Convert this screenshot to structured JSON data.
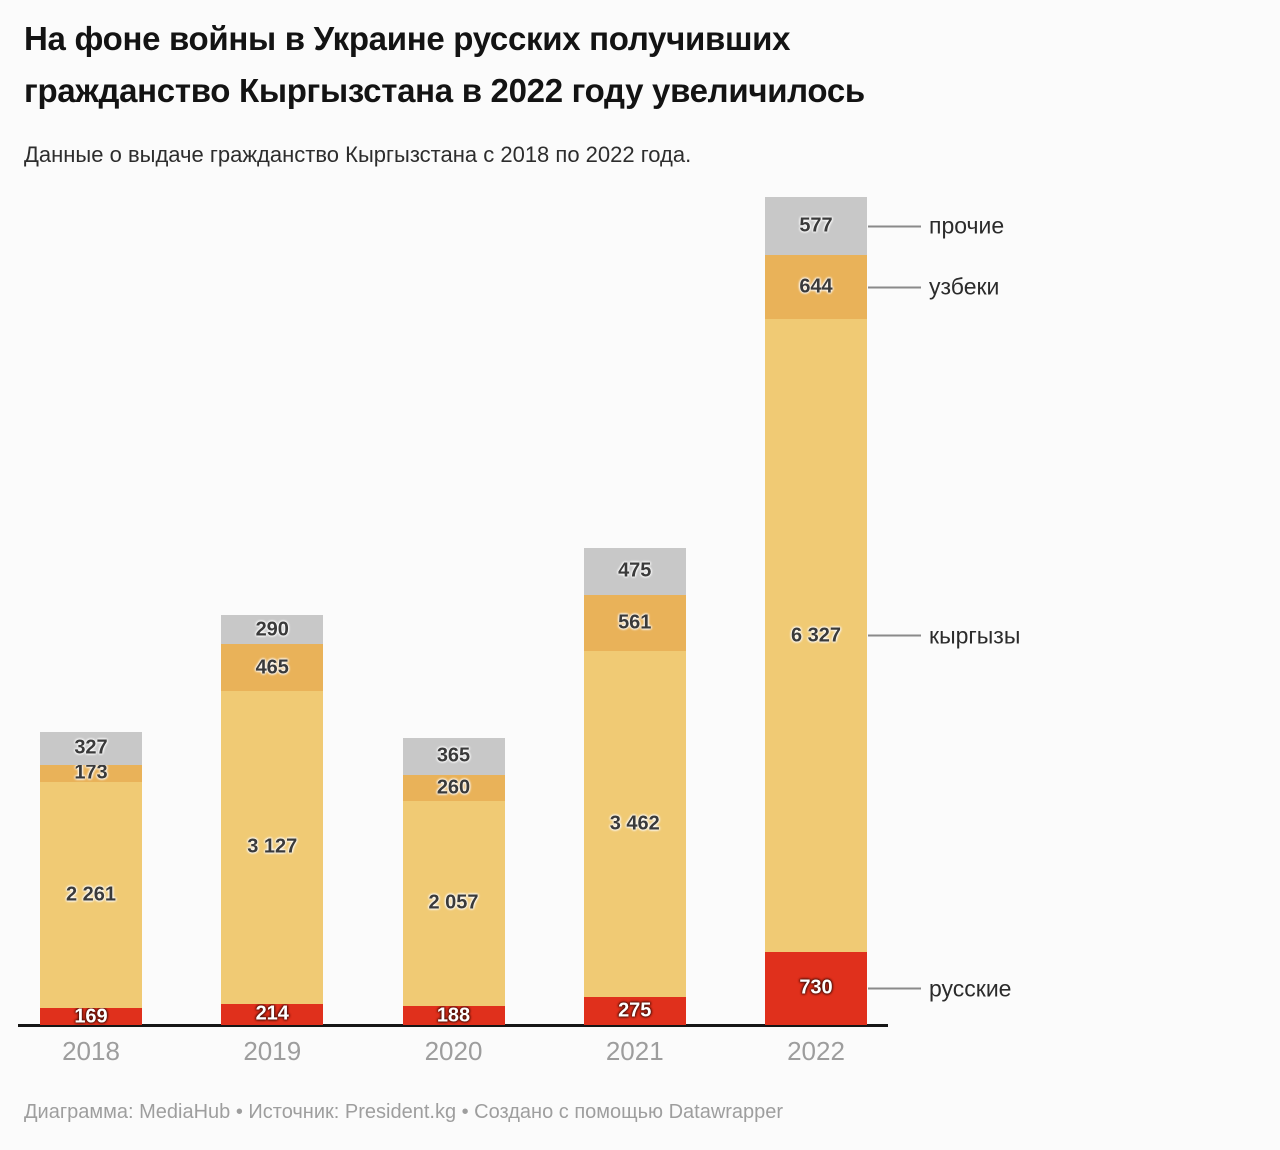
{
  "title": {
    "line1": "На фоне войны в Украине русских получивших",
    "line2": "гражданство Кыргызстана в 2022 году увеличилось"
  },
  "subtitle": "Данные о выдаче гражданство Кыргызстана с 2018 по 2022 года.",
  "footer": "Диаграмма: MediaHub • Источник: President.kg • Создано с помощью Datawrapper",
  "chart_data": {
    "type": "bar",
    "stacked": true,
    "orientation": "vertical",
    "title": "На фоне войны в Украине русских получивших гражданство Кыргызстана в 2022 году увеличилось",
    "subtitle": "Данные о выдаче гражданство Кыргызстана с 2018 по 2022 года.",
    "categories": [
      "2018",
      "2019",
      "2020",
      "2021",
      "2022"
    ],
    "series": [
      {
        "key": "russians",
        "name": "русские",
        "color": "#e0301c",
        "label_color": "#ffffff",
        "values": [
          169,
          214,
          188,
          275,
          730
        ]
      },
      {
        "key": "kyrgyz",
        "name": "кыргызы",
        "color": "#f0ca74",
        "label_color": "#3a3a3a",
        "values": [
          2261,
          3127,
          2057,
          3462,
          6327
        ]
      },
      {
        "key": "uzbeks",
        "name": "узбеки",
        "color": "#e9b259",
        "label_color": "#3a3a3a",
        "values": [
          173,
          465,
          260,
          561,
          644
        ]
      },
      {
        "key": "others",
        "name": "прочие",
        "color": "#c8c8c8",
        "label_color": "#3a3a3a",
        "values": [
          327,
          290,
          365,
          475,
          577
        ]
      }
    ],
    "value_label_format": "thousands separated by space (e.g. 6 327)",
    "grid": false,
    "y_axis": "hidden",
    "legend_position": "right-side annotations connected to 2022 bar",
    "annotations_right": [
      "прочие",
      "узбеки",
      "кыргызы",
      "русские"
    ]
  },
  "colors": {
    "background": "#fbfbfb",
    "title_text": "#131313",
    "subtitle_text": "#2d2d2d",
    "axis": "#161616",
    "year_label": "#9d9d9d",
    "value_label_dark": "#3a3a3a",
    "annotation_line": "#8a8a8a",
    "annotation_text": "#2b2b2b",
    "footer_text": "#9e9e9e"
  }
}
